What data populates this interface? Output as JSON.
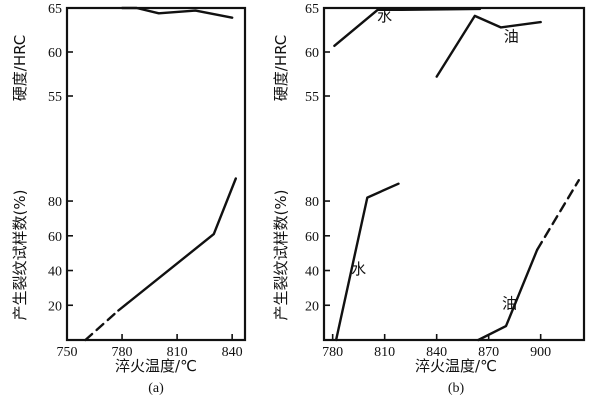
{
  "chart_data": [
    {
      "panel": "(a)",
      "type": "line",
      "xlabel": "淬火温度/℃",
      "xticks": [
        750,
        780,
        810,
        840
      ],
      "xlim": [
        750,
        847
      ],
      "top": {
        "ylabel": "硬度/HRC",
        "yticks": [
          55,
          60,
          65
        ],
        "ylim": [
          50,
          65
        ],
        "series": [
          {
            "x": [
              780,
              788,
              800,
              820,
              840
            ],
            "y": [
              65,
              65,
              64.4,
              64.7,
              63.9
            ],
            "dash": false
          }
        ]
      },
      "bottom": {
        "ylabel": "产生裂纹试样数(%)",
        "yticks": [
          20,
          40,
          60,
          80
        ],
        "ylim": [
          0,
          95
        ],
        "series": [
          {
            "x": [
              760,
              778
            ],
            "y": [
              0,
              17
            ],
            "dash": true
          },
          {
            "x": [
              778,
              830,
              842
            ],
            "y": [
              17,
              61,
              93
            ],
            "dash": false
          }
        ]
      }
    },
    {
      "panel": "(b)",
      "type": "line",
      "xlabel": "淬火温度/℃",
      "xticks": [
        780,
        810,
        840,
        870,
        900
      ],
      "xlim": [
        775,
        925
      ],
      "top": {
        "ylabel": "硬度/HRC",
        "yticks": [
          55,
          60,
          65
        ],
        "ylim": [
          50,
          65
        ],
        "series": [
          {
            "name": "水",
            "x": [
              781,
              806,
              820,
              865
            ],
            "y": [
              60.7,
              64.8,
              64.8,
              64.9
            ],
            "dash": false
          },
          {
            "name": "油",
            "x": [
              840,
              862,
              877,
              900
            ],
            "y": [
              57.2,
              64.1,
              62.8,
              63.4
            ],
            "dash": false
          }
        ]
      },
      "bottom": {
        "ylabel": "产生裂纹试样数(%)",
        "yticks": [
          20,
          40,
          60,
          80
        ],
        "ylim": [
          0,
          95
        ],
        "series": [
          {
            "name": "水",
            "x": [
              782,
              800,
              818
            ],
            "y": [
              0,
              82,
              90
            ],
            "dash": false
          },
          {
            "name": "油",
            "x": [
              864,
              880,
              898
            ],
            "y": [
              0,
              8,
              52
            ],
            "dash": false
          },
          {
            "name": "油",
            "x": [
              898,
              922
            ],
            "y": [
              52,
              92
            ],
            "dash": true
          }
        ]
      },
      "labels": [
        {
          "text": "水",
          "part": "top",
          "x": 810,
          "y": 63.5
        },
        {
          "text": "油",
          "part": "top",
          "x": 883,
          "y": 61.2
        },
        {
          "text": "水",
          "part": "bottom",
          "x": 795,
          "y": 38
        },
        {
          "text": "油",
          "part": "bottom",
          "x": 882,
          "y": 18
        }
      ]
    }
  ]
}
